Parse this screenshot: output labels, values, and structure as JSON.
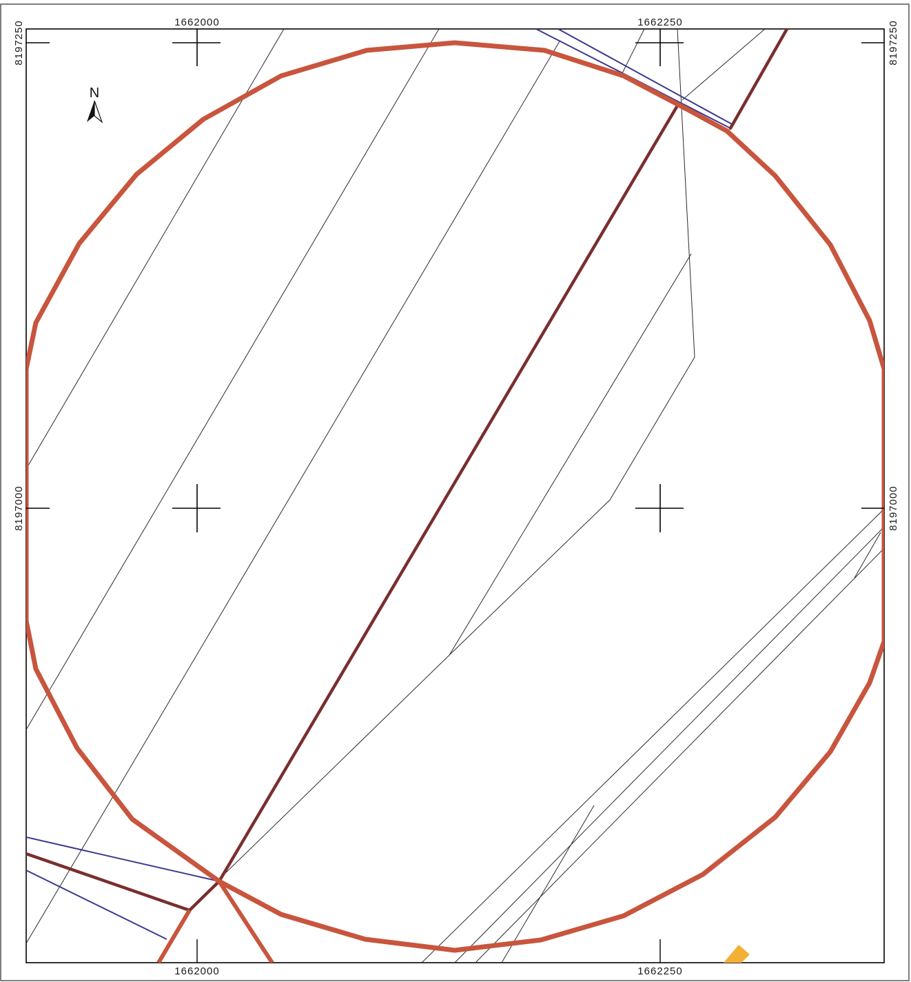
{
  "map": {
    "north_arrow": {
      "label": "N",
      "icon": "north-arrow-icon"
    },
    "coordinates": {
      "top_left_easting": "1662000",
      "top_right_easting": "1662250",
      "bottom_left_easting": "1662000",
      "bottom_right_easting": "1662250",
      "left_top_northing": "8197250",
      "left_mid_northing": "8197000",
      "right_top_northing": "8197250",
      "right_mid_northing": "8197000"
    },
    "colors": {
      "buffer_circle": "#c8553d",
      "road": "#7a2e2e",
      "boundary_line": "#3b3a8f",
      "parcel_line": "#2a2a2a",
      "feature_fill": "#f2b134",
      "frame": "#000000"
    }
  }
}
